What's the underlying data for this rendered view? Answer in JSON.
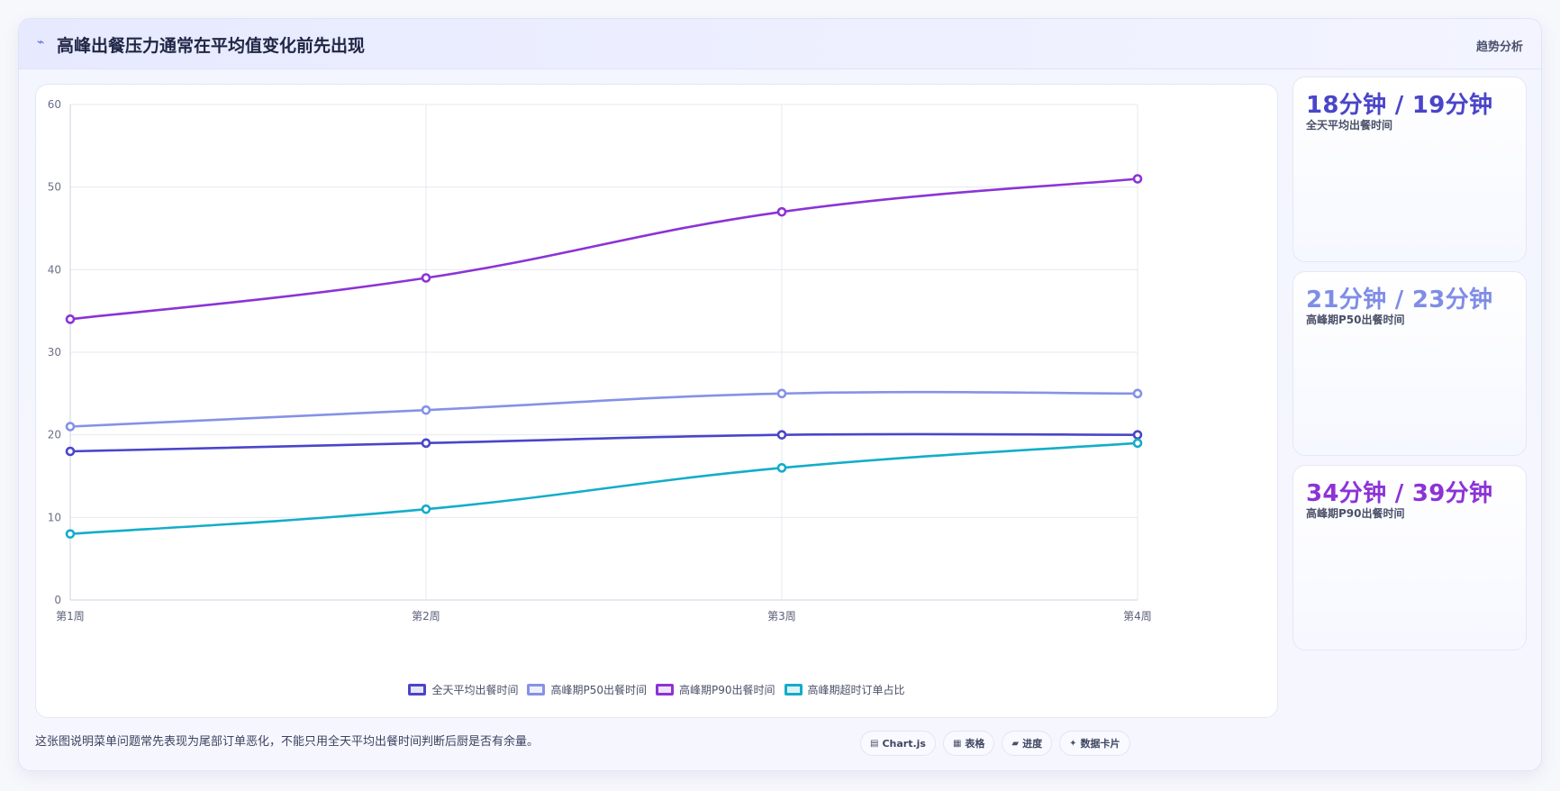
{
  "header": {
    "title": "高峰出餐压力通常在平均值变化前先出现",
    "tag": "趋势分析"
  },
  "chart_data": {
    "type": "line",
    "categories": [
      "第1周",
      "第2周",
      "第3周",
      "第4周"
    ],
    "ylim": [
      0,
      60
    ],
    "yticks": [
      0,
      10,
      20,
      30,
      40,
      50,
      60
    ],
    "grid": true,
    "legend_position": "bottom",
    "series": [
      {
        "name": "全天平均出餐时间",
        "values": [
          18,
          19,
          20,
          20
        ],
        "color": "#4a45c9"
      },
      {
        "name": "高峰期P50出餐时间",
        "values": [
          21,
          23,
          25,
          25
        ],
        "color": "#8592e6"
      },
      {
        "name": "高峰期P90出餐时间",
        "values": [
          34,
          39,
          47,
          51
        ],
        "color": "#8c33d6"
      },
      {
        "name": "高峰期超时订单占比",
        "values": [
          8,
          11,
          16,
          19
        ],
        "color": "#13adc9"
      }
    ]
  },
  "stats": [
    {
      "value": "18分钟 / 19分钟",
      "label": "全天平均出餐时间",
      "color": "#4a45c9"
    },
    {
      "value": "21分钟 / 23分钟",
      "label": "高峰期P50出餐时间",
      "color": "#7f8de6"
    },
    {
      "value": "34分钟 / 39分钟",
      "label": "高峰期P90出餐时间",
      "color": "#8c33d6"
    }
  ],
  "footer": {
    "note": "这张图说明菜单问题常先表现为尾部订单恶化，不能只用全天平均出餐时间判断后厨是否有余量。",
    "pills": [
      {
        "label": "Chart.js",
        "icon": "chart-icon"
      },
      {
        "label": "表格",
        "icon": "table-icon"
      },
      {
        "label": "进度",
        "icon": "progress-icon"
      },
      {
        "label": "数据卡片",
        "icon": "sparkle-icon"
      }
    ]
  }
}
